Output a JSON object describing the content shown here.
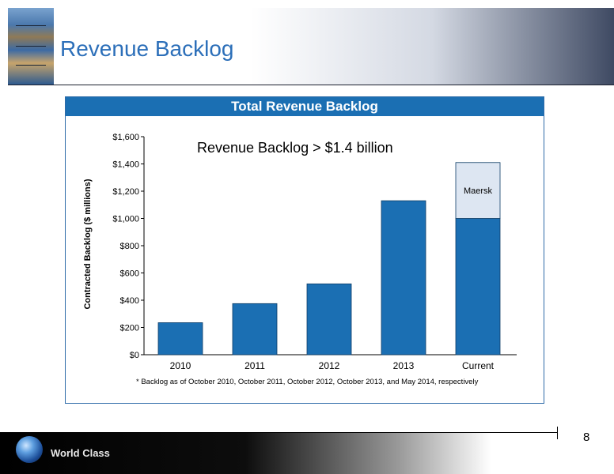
{
  "slide": {
    "title": "Revenue Backlog",
    "page_number": "8",
    "footer_text": "World Class"
  },
  "chart_data": {
    "type": "bar",
    "panel_title": "Total Revenue Backlog",
    "annotation": "Revenue Backlog > $1.4 billion",
    "ylabel": "Contracted Backlog ($ millions)",
    "xlabel": "",
    "ylim": [
      0,
      1600
    ],
    "yticks": [
      0,
      200,
      400,
      600,
      800,
      1000,
      1200,
      1400,
      1600
    ],
    "ytick_labels": [
      "$0",
      "$200",
      "$400",
      "$600",
      "$800",
      "$1,000",
      "$1,200",
      "$1,400",
      "$1,600"
    ],
    "categories": [
      "2010",
      "2011",
      "2012",
      "2013",
      "Current"
    ],
    "series": [
      {
        "values": [
          235,
          375,
          520,
          1130,
          1000
        ],
        "color": "#1b6fb3"
      },
      {
        "name": "Maersk",
        "values": [
          0,
          0,
          0,
          0,
          410
        ],
        "color": "#dde6f2"
      }
    ],
    "footnote": "* Backlog as of October 2010, October 2011, October 2012, October 2013, and May 2014, respectively",
    "grid": false,
    "legend": "none"
  }
}
